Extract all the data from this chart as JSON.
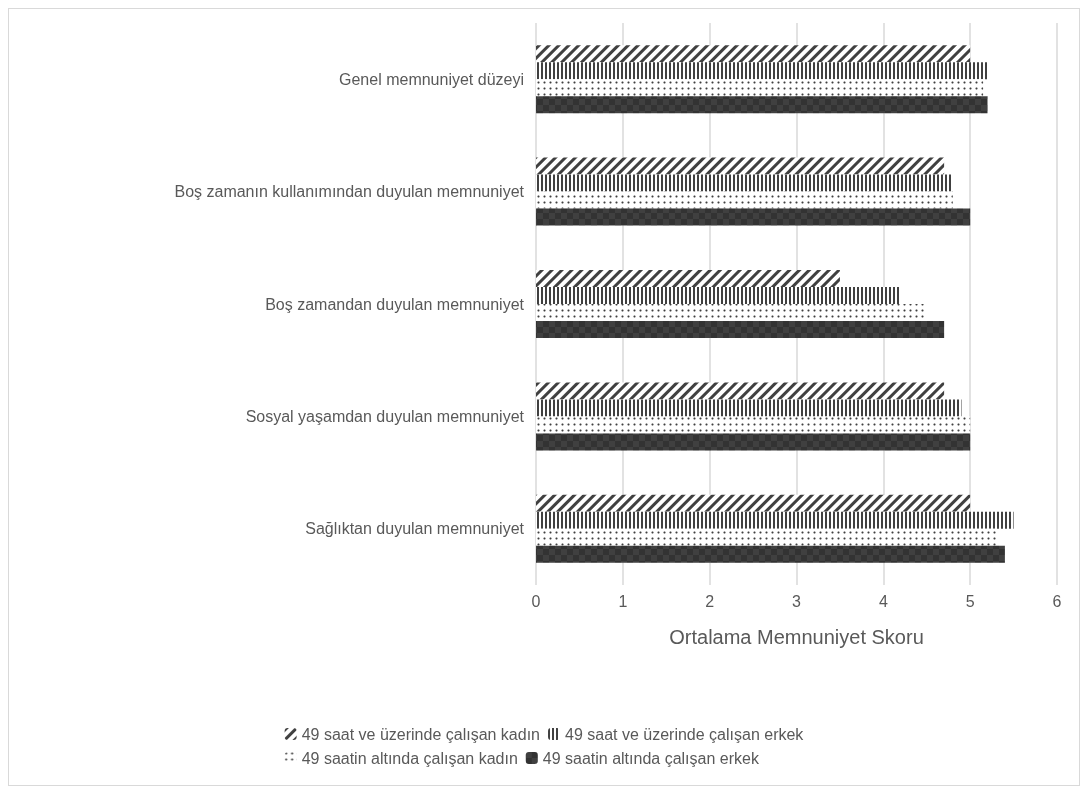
{
  "chart_data": {
    "type": "bar",
    "orientation": "horizontal",
    "xlabel": "Ortalama Memnuniyet Skoru",
    "categories": [
      "Genel memnuniyet düzeyi",
      "Boş zamanın kullanımından duyulan memnuniyet",
      "Boş zamandan duyulan memnuniyet",
      "Sosyal yaşamdan duyulan memnuniyet",
      "Sağlıktan duyulan memnuniyet"
    ],
    "series": [
      {
        "name": "49 saat ve üzerinde çalışan kadın",
        "color": "#404040",
        "values": [
          5.0,
          4.7,
          3.5,
          4.7,
          5.0
        ]
      },
      {
        "name": "49 saat ve üzerinde çalışan erkek",
        "color": "#404040",
        "values": [
          5.2,
          4.8,
          4.2,
          4.9,
          5.5
        ]
      },
      {
        "name": "49 saatin altında çalışan kadın",
        "color": "#404040",
        "values": [
          5.15,
          4.8,
          4.5,
          5.0,
          5.3
        ]
      },
      {
        "name": "49 saatin altında çalışan erkek",
        "color": "#404040",
        "values": [
          5.2,
          5.0,
          4.7,
          5.0,
          5.4
        ]
      }
    ],
    "xlim": [
      0,
      6
    ],
    "xticks": [
      0,
      1,
      2,
      3,
      4,
      5,
      6
    ],
    "grid": "x",
    "legend": "bottom"
  }
}
